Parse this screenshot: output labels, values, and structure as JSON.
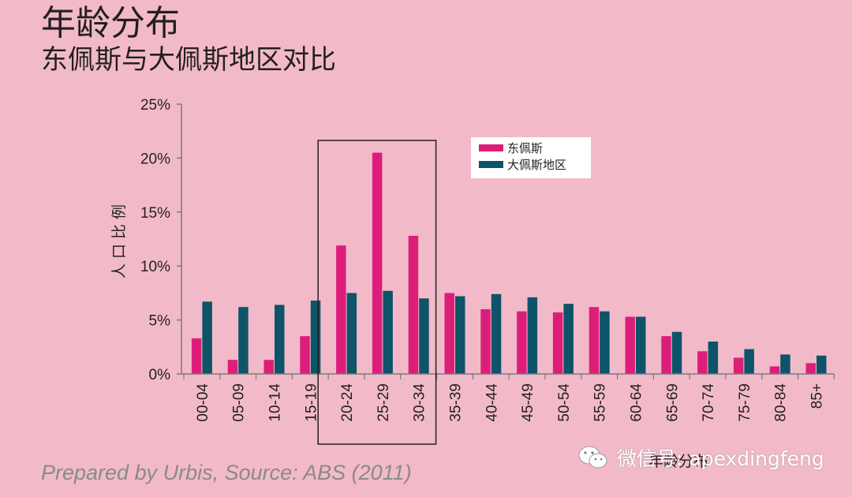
{
  "header": {
    "title": "年龄分布",
    "subtitle": "东佩斯与大佩斯地区对比"
  },
  "footer": {
    "source": "Prepared by Urbis, Source: ABS (2011)"
  },
  "watermark": {
    "text": "微信号: apexdingfeng",
    "icon": "wechat-icon"
  },
  "colors": {
    "background": "#f2bac9",
    "series1": "#dc1e7a",
    "series2": "#0d5468",
    "axis": "#7a7a7a",
    "highlight_box": "#231f20"
  },
  "chart_data": {
    "type": "bar",
    "xlabel": "年龄分布",
    "ylabel": "人口比例",
    "ylim": [
      0,
      25
    ],
    "yticks": [
      "0%",
      "5%",
      "10%",
      "15%",
      "20%",
      "25%"
    ],
    "yticks_values": [
      0,
      5,
      10,
      15,
      20,
      25
    ],
    "categories": [
      "00-04",
      "05-09",
      "10-14",
      "15-19",
      "20-24",
      "25-29",
      "30-34",
      "35-39",
      "40-44",
      "45-49",
      "50-54",
      "55-59",
      "60-64",
      "65-69",
      "70-74",
      "75-79",
      "80-84",
      "85+"
    ],
    "series": [
      {
        "name": "东佩斯",
        "values": [
          3.3,
          1.3,
          1.3,
          3.5,
          11.9,
          20.5,
          12.8,
          7.5,
          6.0,
          5.8,
          5.7,
          6.2,
          5.3,
          3.5,
          2.1,
          1.5,
          0.7,
          1.0
        ]
      },
      {
        "name": "大佩斯地区",
        "values": [
          6.7,
          6.2,
          6.4,
          6.8,
          7.5,
          7.7,
          7.0,
          7.2,
          7.4,
          7.1,
          6.5,
          5.8,
          5.3,
          3.9,
          3.0,
          2.3,
          1.8,
          1.7
        ]
      }
    ],
    "highlight_categories": [
      "20-24",
      "25-29",
      "30-34"
    ],
    "legend_position": "top-right",
    "grid": false
  }
}
